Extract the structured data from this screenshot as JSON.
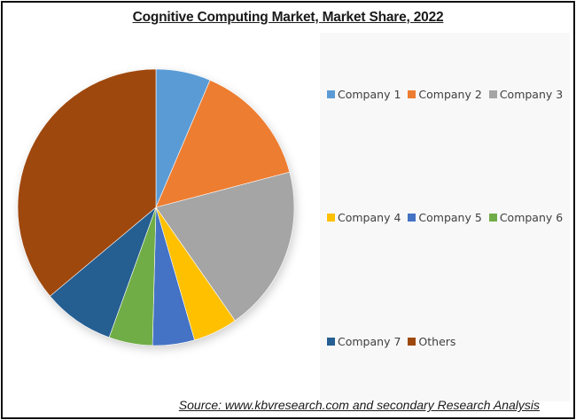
{
  "title": "Cognitive Computing Market, Market Share, 2022",
  "source": "Source: www.kbvresearch.com and secondary Research Analysis",
  "legend": {
    "rows": [
      [
        {
          "label": "Company 1",
          "color": "#5B9BD5"
        },
        {
          "label": "Company 2",
          "color": "#ED7D31"
        },
        {
          "label": "Company 3",
          "color": "#A5A5A5"
        }
      ],
      [
        {
          "label": "Company 4",
          "color": "#FFC000"
        },
        {
          "label": "Company 5",
          "color": "#4472C4"
        },
        {
          "label": "Company 6",
          "color": "#70AD47"
        }
      ],
      [
        {
          "label": "Company 7",
          "color": "#255E91"
        },
        {
          "label": "Others",
          "color": "#9E480E"
        }
      ]
    ]
  },
  "chart_data": {
    "type": "pie",
    "title": "Cognitive Computing Market, Market Share, 2022",
    "categories": [
      "Company 1",
      "Company 2",
      "Company 3",
      "Company 4",
      "Company 5",
      "Company 6",
      "Company 7",
      "Others"
    ],
    "values": [
      6.4,
      14.5,
      19.4,
      5.2,
      4.9,
      5.1,
      8.4,
      36.1
    ],
    "unit": "% (estimated from slice angles)",
    "colors": [
      "#5B9BD5",
      "#ED7D31",
      "#A5A5A5",
      "#FFC000",
      "#4472C4",
      "#70AD47",
      "#255E91",
      "#9E480E"
    ],
    "start_angle": "12 o'clock, clockwise",
    "legend_position": "right",
    "data_labels": false,
    "source": "Source: www.kbvresearch.com and secondary Research Analysis"
  }
}
